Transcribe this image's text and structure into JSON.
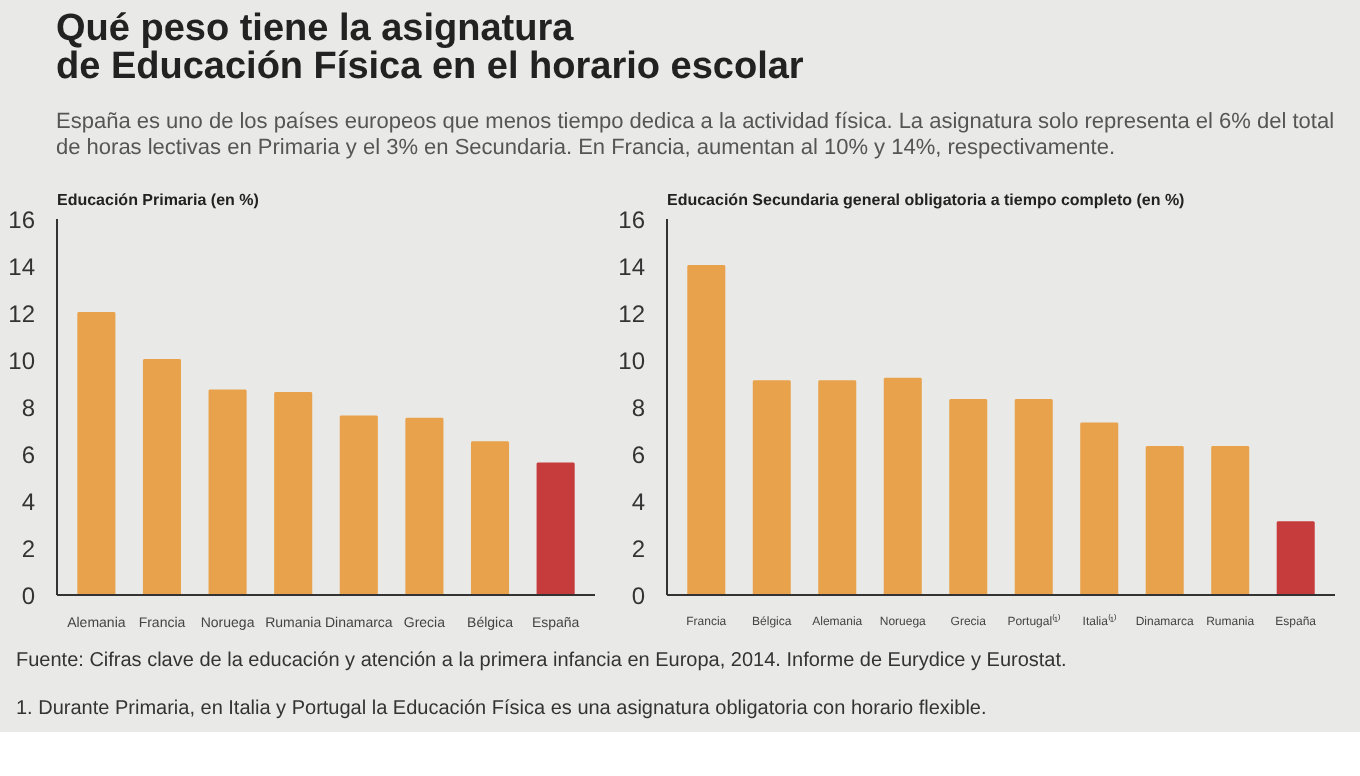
{
  "chart_data": [
    {
      "type": "bar",
      "title": "Qué peso tiene la asignatura\nde Educación Física en el horario escolar",
      "subtitle": "España es uno de los países europeos que menos tiempo dedica a la actividad física. La asignatura solo representa el 6% del total de horas lectivas en Primaria y el 3% en Secundaria. En Francia, aumentan al 10% y 14%, respectivamente.",
      "ylabel": "Educación Primaria (en %)",
      "categories": [
        "Alemania",
        "Francia",
        "Noruega",
        "Rumania",
        "Dinamarca",
        "Grecia",
        "Bélgica",
        "España"
      ],
      "values": [
        12,
        10,
        8.7,
        8.6,
        7.6,
        7.5,
        6.5,
        5.6
      ],
      "colors": [
        "#e9a24c",
        "#e9a24c",
        "#e9a24c",
        "#e9a24c",
        "#e9a24c",
        "#e9a24c",
        "#e9a24c",
        "#c63c3c"
      ],
      "ylim": [
        0,
        16
      ],
      "yticks": [
        0,
        2,
        4,
        6,
        8,
        10,
        12,
        14,
        16
      ],
      "grid": false
    },
    {
      "type": "bar",
      "ylabel": "Educación Secundaria general obligatoria a tiempo completo (en %)",
      "categories": [
        "Francia",
        "Bélgica",
        "Alemania",
        "Noruega",
        "Grecia",
        "Portugal⁽¹⁾",
        "Italia⁽¹⁾",
        "Dinamarca",
        "Rumania",
        "España"
      ],
      "values": [
        14,
        9.1,
        9.1,
        9.2,
        8.3,
        8.3,
        7.3,
        6.3,
        6.3,
        3.1
      ],
      "colors": [
        "#e9a24c",
        "#e9a24c",
        "#e9a24c",
        "#e9a24c",
        "#e9a24c",
        "#e9a24c",
        "#e9a24c",
        "#e9a24c",
        "#e9a24c",
        "#c63c3c"
      ],
      "ylim": [
        0,
        16
      ],
      "yticks": [
        0,
        2,
        4,
        6,
        8,
        10,
        12,
        14,
        16
      ],
      "grid": false,
      "annotations": [
        "Fuente: Cifras clave de la educación y atención a la primera infancia en Europa, 2014. Informe de Eurydice y Eurostat.",
        "1. Durante  Primaria, en Italia y Portugal la Educación Física es una asignatura obligatoria con horario flexible."
      ]
    }
  ]
}
